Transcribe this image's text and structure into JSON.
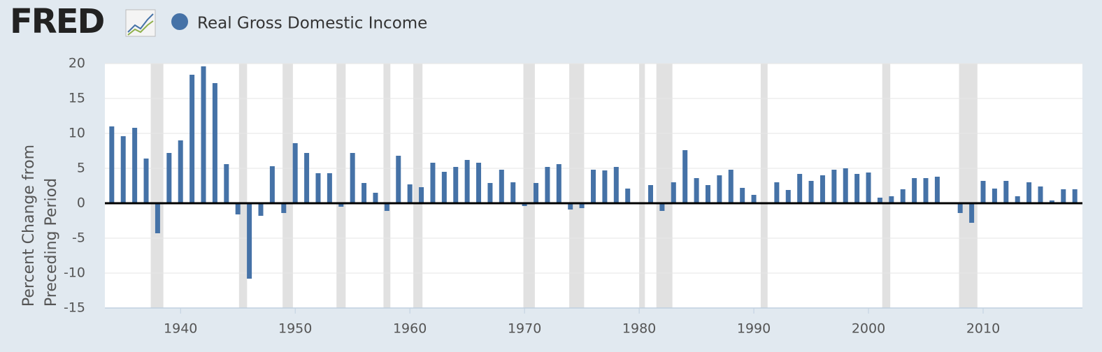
{
  "logo": "FRED",
  "chart_data": {
    "type": "bar",
    "y_label": [
      "Percent Change from",
      "Preceding Period"
    ],
    "x": [
      1934,
      1935,
      1936,
      1937,
      1938,
      1939,
      1940,
      1941,
      1942,
      1943,
      1944,
      1945,
      1946,
      1947,
      1948,
      1949,
      1950,
      1951,
      1952,
      1953,
      1954,
      1955,
      1956,
      1957,
      1958,
      1959,
      1960,
      1961,
      1962,
      1963,
      1964,
      1965,
      1966,
      1967,
      1968,
      1969,
      1970,
      1971,
      1972,
      1973,
      1974,
      1975,
      1976,
      1977,
      1978,
      1979,
      1980,
      1981,
      1982,
      1983,
      1984,
      1985,
      1986,
      1987,
      1988,
      1989,
      1990,
      1991,
      1992,
      1993,
      1994,
      1995,
      1996,
      1997,
      1998,
      1999,
      2000,
      2001,
      2002,
      2003,
      2004,
      2005,
      2006,
      2007,
      2008,
      2009,
      2010,
      2011,
      2012,
      2013,
      2014,
      2015,
      2016,
      2017,
      2018
    ],
    "series": [
      {
        "name": "Real Gross Domestic Income",
        "color": "#4572a7",
        "values": [
          11.0,
          9.6,
          10.8,
          6.4,
          -4.3,
          7.2,
          9.0,
          18.4,
          19.6,
          17.2,
          5.6,
          -1.6,
          -10.8,
          -1.8,
          5.3,
          -1.4,
          8.6,
          7.2,
          4.3,
          4.3,
          -0.5,
          7.2,
          2.9,
          1.5,
          -1.1,
          6.8,
          2.7,
          2.3,
          5.8,
          4.5,
          5.2,
          6.2,
          5.8,
          2.9,
          4.8,
          3.0,
          -0.4,
          2.9,
          5.2,
          5.6,
          -0.9,
          -0.7,
          4.8,
          4.7,
          5.2,
          2.1,
          0.0,
          2.6,
          -1.1,
          3.0,
          7.6,
          3.6,
          2.6,
          4.0,
          4.8,
          2.2,
          1.2,
          0.0,
          3.0,
          1.9,
          4.2,
          3.2,
          4.0,
          4.8,
          5.0,
          4.2,
          4.4,
          0.8,
          1.0,
          2.0,
          3.6,
          3.6,
          3.8,
          0.0,
          -1.4,
          -2.8,
          3.2,
          2.1,
          3.2,
          1.0,
          3.0,
          2.4,
          0.4,
          2.0,
          2.0
        ]
      }
    ],
    "recessions": [
      [
        1937.4,
        1938.5
      ],
      [
        1945.1,
        1945.8
      ],
      [
        1948.9,
        1949.8
      ],
      [
        1953.6,
        1954.4
      ],
      [
        1957.7,
        1958.3
      ],
      [
        1960.3,
        1961.1
      ],
      [
        1969.9,
        1970.9
      ],
      [
        1973.9,
        1975.2
      ],
      [
        1980.0,
        1980.5
      ],
      [
        1981.5,
        1982.9
      ],
      [
        1990.6,
        1991.2
      ],
      [
        2001.2,
        2001.9
      ],
      [
        2007.9,
        2009.5
      ]
    ],
    "recession_color": "#e1e1e1",
    "xlim": [
      1933.4,
      2018.66
    ],
    "xticks": [
      1940,
      1950,
      1960,
      1970,
      1980,
      1990,
      2000,
      2010
    ],
    "ylim": [
      -15,
      20
    ],
    "yticks": [
      -15,
      -10,
      -5,
      0,
      5,
      10,
      15,
      20
    ],
    "grid": true
  }
}
